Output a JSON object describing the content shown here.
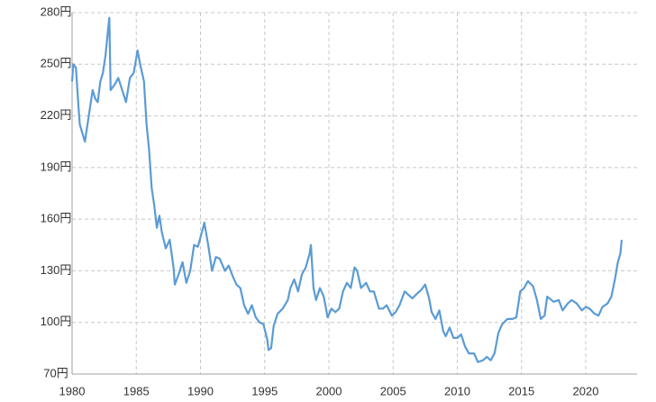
{
  "chart_data": {
    "type": "line",
    "x": [
      1980.0,
      1980.1,
      1980.3,
      1980.5,
      1980.6,
      1980.8,
      1981.0,
      1981.2,
      1981.4,
      1981.6,
      1981.8,
      1982.0,
      1982.2,
      1982.4,
      1982.6,
      1982.8,
      1982.9,
      1983.0,
      1983.3,
      1983.6,
      1983.9,
      1984.2,
      1984.5,
      1984.8,
      1985.1,
      1985.3,
      1985.6,
      1985.8,
      1986.0,
      1986.2,
      1986.4,
      1986.6,
      1986.8,
      1987.0,
      1987.3,
      1987.6,
      1987.9,
      1988.0,
      1988.3,
      1988.6,
      1988.9,
      1989.2,
      1989.5,
      1989.8,
      1990.2,
      1990.3,
      1990.6,
      1990.9,
      1991.2,
      1991.5,
      1991.9,
      1992.2,
      1992.5,
      1992.8,
      1993.1,
      1993.4,
      1993.7,
      1994.0,
      1994.3,
      1994.6,
      1994.9,
      1995.2,
      1995.3,
      1995.5,
      1995.7,
      1996.0,
      1996.4,
      1996.8,
      1997.0,
      1997.3,
      1997.6,
      1997.9,
      1998.2,
      1998.5,
      1998.6,
      1998.8,
      1999.0,
      1999.3,
      1999.6,
      1999.9,
      2000.2,
      2000.5,
      2000.8,
      2001.1,
      2001.4,
      2001.7,
      2002.0,
      2002.2,
      2002.5,
      2002.9,
      2003.2,
      2003.5,
      2003.9,
      2004.2,
      2004.5,
      2004.9,
      2005.2,
      2005.5,
      2005.9,
      2006.2,
      2006.5,
      2006.9,
      2007.2,
      2007.5,
      2007.8,
      2008.0,
      2008.3,
      2008.6,
      2008.9,
      2009.1,
      2009.4,
      2009.7,
      2010.0,
      2010.3,
      2010.6,
      2010.9,
      2011.3,
      2011.6,
      2012.0,
      2012.3,
      2012.6,
      2012.9,
      2013.2,
      2013.5,
      2013.9,
      2014.3,
      2014.6,
      2014.9,
      2015.2,
      2015.5,
      2015.9,
      2016.2,
      2016.5,
      2016.8,
      2017.0,
      2017.5,
      2017.9,
      2018.2,
      2018.6,
      2018.9,
      2019.3,
      2019.7,
      2020.0,
      2020.3,
      2020.7,
      2021.0,
      2021.3,
      2021.7,
      2022.0,
      2022.3,
      2022.5,
      2022.7,
      2022.8
    ],
    "series": [
      {
        "color": "#5b9bd5",
        "values": [
          240,
          250,
          248,
          225,
          215,
          210,
          205,
          215,
          225,
          235,
          230,
          228,
          240,
          245,
          255,
          270,
          277,
          235,
          238,
          242,
          235,
          228,
          242,
          245,
          258,
          250,
          240,
          215,
          200,
          178,
          168,
          155,
          162,
          152,
          143,
          148,
          132,
          122,
          128,
          135,
          123,
          130,
          145,
          144,
          155,
          158,
          145,
          130,
          138,
          137,
          130,
          133,
          127,
          122,
          120,
          110,
          105,
          110,
          103,
          100,
          99,
          90,
          84,
          85,
          98,
          105,
          108,
          113,
          120,
          125,
          118,
          128,
          132,
          140,
          145,
          120,
          113,
          120,
          115,
          103,
          108,
          106,
          108,
          118,
          123,
          120,
          132,
          130,
          120,
          123,
          118,
          118,
          108,
          108,
          110,
          104,
          106,
          110,
          118,
          116,
          114,
          117,
          119,
          122,
          114,
          106,
          102,
          107,
          95,
          92,
          97,
          91,
          91,
          93,
          86,
          82,
          82,
          77,
          78,
          80,
          78,
          82,
          94,
          99,
          102,
          102,
          103,
          118,
          120,
          124,
          121,
          113,
          102,
          104,
          115,
          112,
          113,
          107,
          111,
          113,
          111,
          107,
          109,
          108,
          105,
          104,
          109,
          111,
          115,
          126,
          135,
          140,
          148
        ]
      }
    ],
    "xlim": [
      1980,
      2024
    ],
    "xticks": [
      1980,
      1985,
      1990,
      1995,
      2000,
      2005,
      2010,
      2015,
      2020
    ],
    "ylim": [
      70,
      280
    ],
    "yticks": [
      {
        "value": 70,
        "label": "70円"
      },
      {
        "value": 100,
        "label": "100円"
      },
      {
        "value": 130,
        "label": "130円"
      },
      {
        "value": 160,
        "label": "160円"
      },
      {
        "value": 190,
        "label": "190円"
      },
      {
        "value": 220,
        "label": "220円"
      },
      {
        "value": 250,
        "label": "250円"
      },
      {
        "value": 280,
        "label": "280円"
      }
    ],
    "grid": true
  }
}
